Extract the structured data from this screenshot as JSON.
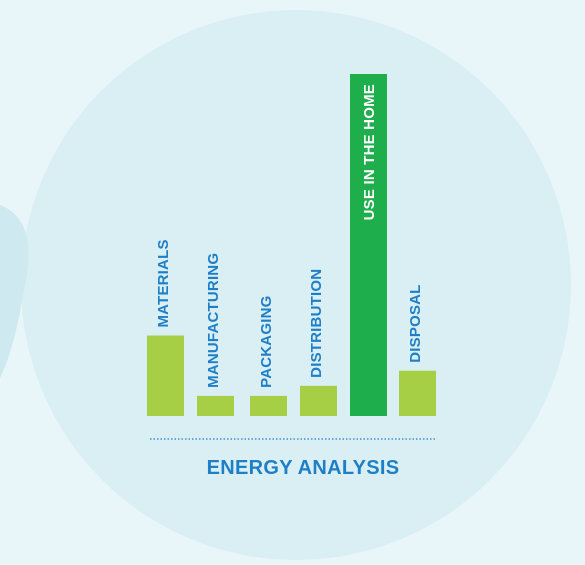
{
  "chart_data": {
    "type": "bar",
    "categories": [
      "MATERIALS",
      "MANUFACTURING",
      "PACKAGING",
      "DISTRIBUTION",
      "USE IN THE HOME",
      "DISPOSAL"
    ],
    "values": [
      8,
      2,
      2,
      3,
      34,
      4.5
    ],
    "xlabel": "ENERGY ANALYSIS",
    "ylabel": "",
    "title": "",
    "highlight_category": "USE IN THE HOME",
    "grid": false,
    "legend": "none"
  },
  "colors": {
    "page_background": "#e9f6f9",
    "circle_fill": "#d9eff4",
    "bar_default": "#a6cf45",
    "bar_highlight": "#1eae4b",
    "label_default": "#1e7fc6",
    "label_on_highlight": "#ffffff",
    "axis_title": "#1e7fc6",
    "baseline": "#1e7fc6"
  }
}
